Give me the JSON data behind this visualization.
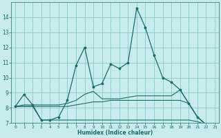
{
  "xlabel": "Humidex (Indice chaleur)",
  "x": [
    0,
    1,
    2,
    3,
    4,
    5,
    6,
    7,
    8,
    9,
    10,
    11,
    12,
    13,
    14,
    15,
    16,
    17,
    18,
    19,
    20,
    21,
    22,
    23
  ],
  "line1": [
    8.1,
    8.9,
    8.2,
    7.2,
    7.2,
    7.4,
    8.5,
    10.8,
    12.0,
    9.4,
    9.6,
    10.9,
    10.6,
    11.0,
    14.6,
    13.3,
    11.5,
    10.0,
    9.7,
    9.2,
    8.3,
    7.4,
    6.9,
    6.7
  ],
  "line2": [
    8.1,
    8.2,
    8.2,
    8.2,
    8.2,
    8.2,
    8.3,
    8.5,
    8.9,
    9.1,
    8.6,
    8.6,
    8.6,
    8.7,
    8.8,
    8.8,
    8.8,
    8.8,
    8.8,
    9.2,
    8.3,
    7.4,
    6.9,
    6.7
  ],
  "line3": [
    8.1,
    8.1,
    8.1,
    8.1,
    8.1,
    8.1,
    8.1,
    8.2,
    8.3,
    8.4,
    8.4,
    8.5,
    8.5,
    8.5,
    8.5,
    8.5,
    8.5,
    8.5,
    8.5,
    8.5,
    8.3,
    7.4,
    6.9,
    6.7
  ],
  "line4": [
    8.1,
    8.1,
    8.1,
    7.2,
    7.2,
    7.2,
    7.2,
    7.2,
    7.2,
    7.2,
    7.2,
    7.2,
    7.2,
    7.2,
    7.2,
    7.2,
    7.2,
    7.2,
    7.2,
    7.2,
    7.2,
    7.1,
    6.9,
    6.7
  ],
  "line_color": "#1a6b6b",
  "bg_color": "#c8ecec",
  "grid_color": "#80c0c0",
  "ylim": [
    7,
    15
  ],
  "yticks": [
    7,
    8,
    9,
    10,
    11,
    12,
    13,
    14
  ],
  "xlim": [
    -0.5,
    23.5
  ]
}
